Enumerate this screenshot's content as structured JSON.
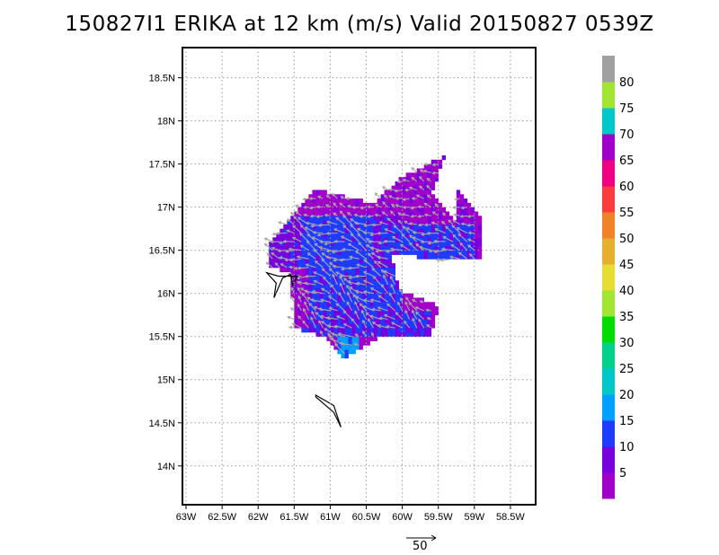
{
  "title": "150827I1 ERIKA at 12 km (m/s) Valid 20150827 0539Z",
  "chart_data": {
    "type": "heatmap",
    "title": "150827I1 ERIKA at 12 km (m/s) Valid 20150827 0539Z",
    "xlabel": "",
    "ylabel": "",
    "x_ticks": [
      "63W",
      "62.5W",
      "62W",
      "61.5W",
      "61W",
      "60.5W",
      "60W",
      "59.5W",
      "59W",
      "58.5W"
    ],
    "y_ticks": [
      "14N",
      "14.5N",
      "15N",
      "15.5N",
      "16N",
      "16.5N",
      "17N",
      "17.5N",
      "18N",
      "18.5N"
    ],
    "xlim": [
      -63.05,
      -58.15
    ],
    "ylim": [
      13.55,
      18.85
    ],
    "grid": true,
    "colorbar": {
      "labels": [
        "5",
        "10",
        "15",
        "20",
        "25",
        "30",
        "35",
        "40",
        "45",
        "50",
        "55",
        "60",
        "65",
        "70",
        "75",
        "80"
      ],
      "bins": [
        {
          "lo": 0,
          "hi": 5,
          "color": "#a000c8"
        },
        {
          "lo": 5,
          "hi": 10,
          "color": "#7800dc"
        },
        {
          "lo": 10,
          "hi": 15,
          "color": "#1e3cff"
        },
        {
          "lo": 15,
          "hi": 20,
          "color": "#00a0ff"
        },
        {
          "lo": 20,
          "hi": 25,
          "color": "#00c8c8"
        },
        {
          "lo": 25,
          "hi": 30,
          "color": "#00d28c"
        },
        {
          "lo": 30,
          "hi": 35,
          "color": "#00dc00"
        },
        {
          "lo": 35,
          "hi": 40,
          "color": "#a0e632"
        },
        {
          "lo": 40,
          "hi": 45,
          "color": "#e6dc32"
        },
        {
          "lo": 45,
          "hi": 50,
          "color": "#e6af2d"
        },
        {
          "lo": 50,
          "hi": 55,
          "color": "#f08228"
        },
        {
          "lo": 55,
          "hi": 60,
          "color": "#fa3c3c"
        },
        {
          "lo": 60,
          "hi": 65,
          "color": "#f00082"
        },
        {
          "lo": 65,
          "hi": 70,
          "color": "#a000c8"
        },
        {
          "lo": 70,
          "hi": 75,
          "color": "#00c8c8"
        },
        {
          "lo": 75,
          "hi": 80,
          "color": "#a0e632"
        },
        {
          "lo": 80,
          "hi": 85,
          "color": "#a0a0a0"
        }
      ]
    },
    "wind_regions": [
      {
        "lon": [
          -61.6,
          -60.3
        ],
        "lat": [
          16.9,
          17.2
        ],
        "value": 3
      },
      {
        "lon": [
          -60.4,
          -59.4
        ],
        "lat": [
          16.8,
          17.6
        ],
        "value": 4
      },
      {
        "lon": [
          -59.3,
          -58.9
        ],
        "lat": [
          16.3,
          17.2
        ],
        "value": 5
      },
      {
        "lon": [
          -61.85,
          -60.0
        ],
        "lat": [
          16.3,
          16.9
        ],
        "value": 8
      },
      {
        "lon": [
          -60.3,
          -59.0
        ],
        "lat": [
          16.4,
          16.8
        ],
        "value": 11
      },
      {
        "lon": [
          -61.4,
          -60.4
        ],
        "lat": [
          16.0,
          16.9
        ],
        "value": 12
      },
      {
        "lon": [
          -61.5,
          -60.0
        ],
        "lat": [
          15.8,
          16.3
        ],
        "value": 11
      },
      {
        "lon": [
          -61.4,
          -59.6
        ],
        "lat": [
          15.5,
          15.8
        ],
        "value": 10
      },
      {
        "lon": [
          -61.7,
          -61.3
        ],
        "lat": [
          15.6,
          16.3
        ],
        "value": 4
      },
      {
        "lon": [
          -60.9,
          -60.6
        ],
        "lat": [
          15.25,
          15.5
        ],
        "value": 16
      }
    ],
    "wind_vector_reference": {
      "label": "50",
      "speed": 50
    },
    "wind_vector_mean_direction": "toward west-northwest"
  },
  "colorbar_labels": [
    "5",
    "10",
    "15",
    "20",
    "25",
    "30",
    "35",
    "40",
    "45",
    "50",
    "55",
    "60",
    "65",
    "70",
    "75",
    "80"
  ],
  "reference_vector_label": "50"
}
